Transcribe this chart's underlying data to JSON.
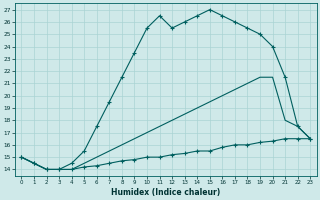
{
  "xlabel": "Humidex (Indice chaleur)",
  "xlim": [
    -0.5,
    23.5
  ],
  "ylim": [
    13.5,
    27.5
  ],
  "xticks": [
    0,
    1,
    2,
    3,
    4,
    5,
    6,
    7,
    8,
    9,
    10,
    11,
    12,
    13,
    14,
    15,
    16,
    17,
    18,
    19,
    20,
    21,
    22,
    23
  ],
  "yticks": [
    14,
    15,
    16,
    17,
    18,
    19,
    20,
    21,
    22,
    23,
    24,
    25,
    26,
    27
  ],
  "bg_color": "#cfe9e9",
  "grid_color": "#aad4d4",
  "line_color": "#005f5f",
  "line1_x": [
    0,
    1,
    2,
    3,
    4,
    5,
    6,
    7,
    8,
    9,
    10,
    11,
    12,
    13,
    14,
    15,
    16,
    17,
    18,
    19,
    20,
    21,
    22,
    23
  ],
  "line1_y": [
    15.0,
    14.5,
    14.0,
    14.0,
    14.5,
    15.5,
    17.5,
    19.5,
    21.5,
    23.5,
    25.5,
    26.5,
    25.5,
    26.0,
    26.5,
    27.0,
    26.5,
    26.0,
    25.5,
    25.0,
    24.0,
    21.5,
    17.5,
    16.5
  ],
  "line2_x": [
    0,
    1,
    2,
    3,
    4,
    5,
    6,
    7,
    8,
    9,
    10,
    11,
    12,
    13,
    14,
    15,
    16,
    17,
    18,
    19,
    20,
    21,
    22,
    23
  ],
  "line2_y": [
    15.0,
    14.5,
    14.0,
    14.0,
    14.0,
    14.2,
    14.3,
    14.5,
    14.7,
    14.8,
    15.0,
    15.0,
    15.2,
    15.3,
    15.5,
    15.5,
    15.8,
    16.0,
    16.0,
    16.2,
    16.3,
    16.5,
    16.5,
    16.5
  ],
  "line3_x": [
    0,
    2,
    3,
    4,
    19,
    20,
    21,
    22,
    23
  ],
  "line3_y": [
    15.0,
    14.0,
    14.0,
    14.0,
    21.5,
    21.5,
    18.0,
    17.5,
    16.5
  ]
}
